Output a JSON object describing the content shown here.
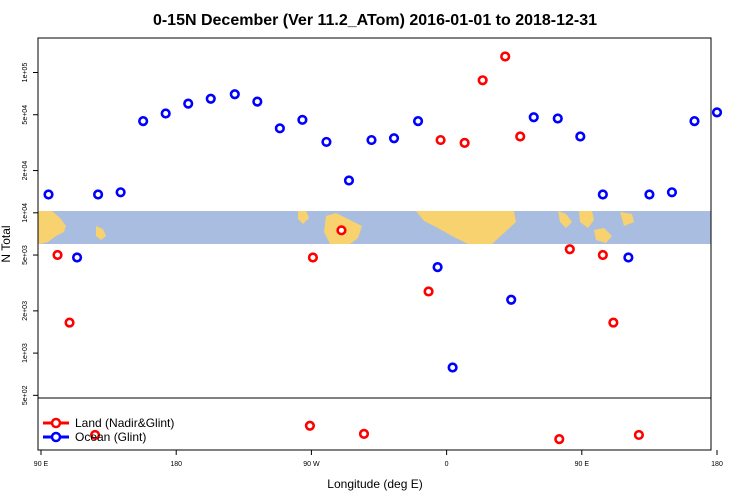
{
  "chart_data": {
    "type": "scatter",
    "title": "0-15N December (Ver 11.2_ATom)   2016-01-01 to 2018-12-31",
    "xlabel": "Longitude (deg E)",
    "ylabel": "N Total",
    "y_scale": "log",
    "x_ticks": [
      {
        "value": 90,
        "label": "90 E"
      },
      {
        "value": 180,
        "label": "180"
      },
      {
        "value": 270,
        "label": "90 W"
      },
      {
        "value": 360,
        "label": "0"
      },
      {
        "value": 450,
        "label": "90 E"
      },
      {
        "value": 540,
        "label": "180"
      }
    ],
    "y_ticks": [
      {
        "value": 100000,
        "label": "1e+05"
      },
      {
        "value": 50000,
        "label": "5e+04"
      },
      {
        "value": 20000,
        "label": "2e+04"
      },
      {
        "value": 10000,
        "label": "1e+04"
      },
      {
        "value": 5000,
        "label": "5e+03"
      },
      {
        "value": 2000,
        "label": "2e+03"
      },
      {
        "value": 1000,
        "label": "1e+03"
      },
      {
        "value": 500,
        "label": "5e+02"
      }
    ],
    "legend_position": "bottom-left",
    "series": [
      {
        "name": "Land (Nadir&Glint)",
        "color": "#ff0000",
        "points": [
          {
            "x": 101,
            "y": 5000
          },
          {
            "x": 109,
            "y": 1650
          },
          {
            "x": 126,
            "y": 105
          },
          {
            "x": 269,
            "y": 155
          },
          {
            "x": 271,
            "y": 4800
          },
          {
            "x": 290,
            "y": 7500
          },
          {
            "x": 305,
            "y": 110
          },
          {
            "x": 348,
            "y": 2750
          },
          {
            "x": 356,
            "y": 33000
          },
          {
            "x": 372,
            "y": 31500
          },
          {
            "x": 384,
            "y": 88000
          },
          {
            "x": 399,
            "y": 130000
          },
          {
            "x": 409,
            "y": 35000
          },
          {
            "x": 435,
            "y": 88
          },
          {
            "x": 442,
            "y": 5500
          },
          {
            "x": 464,
            "y": 5000
          },
          {
            "x": 471,
            "y": 1650
          },
          {
            "x": 488,
            "y": 105
          }
        ]
      },
      {
        "name": "Ocean (Glint)",
        "color": "#0000ff",
        "points": [
          {
            "x": 95,
            "y": 13500
          },
          {
            "x": 114,
            "y": 4800
          },
          {
            "x": 128,
            "y": 13500
          },
          {
            "x": 143,
            "y": 14000
          },
          {
            "x": 158,
            "y": 45000
          },
          {
            "x": 173,
            "y": 51000
          },
          {
            "x": 188,
            "y": 60000
          },
          {
            "x": 203,
            "y": 65000
          },
          {
            "x": 219,
            "y": 70000
          },
          {
            "x": 234,
            "y": 62000
          },
          {
            "x": 249,
            "y": 40000
          },
          {
            "x": 264,
            "y": 46000
          },
          {
            "x": 280,
            "y": 32000
          },
          {
            "x": 295,
            "y": 17000
          },
          {
            "x": 310,
            "y": 33000
          },
          {
            "x": 325,
            "y": 34000
          },
          {
            "x": 341,
            "y": 45000
          },
          {
            "x": 354,
            "y": 4100
          },
          {
            "x": 364,
            "y": 790
          },
          {
            "x": 403,
            "y": 2400
          },
          {
            "x": 418,
            "y": 48000
          },
          {
            "x": 434,
            "y": 47000
          },
          {
            "x": 449,
            "y": 35000
          },
          {
            "x": 464,
            "y": 13500
          },
          {
            "x": 481,
            "y": 4800
          },
          {
            "x": 495,
            "y": 13500
          },
          {
            "x": 510,
            "y": 14000
          },
          {
            "x": 525,
            "y": 45000
          },
          {
            "x": 540,
            "y": 52000
          }
        ]
      }
    ]
  }
}
